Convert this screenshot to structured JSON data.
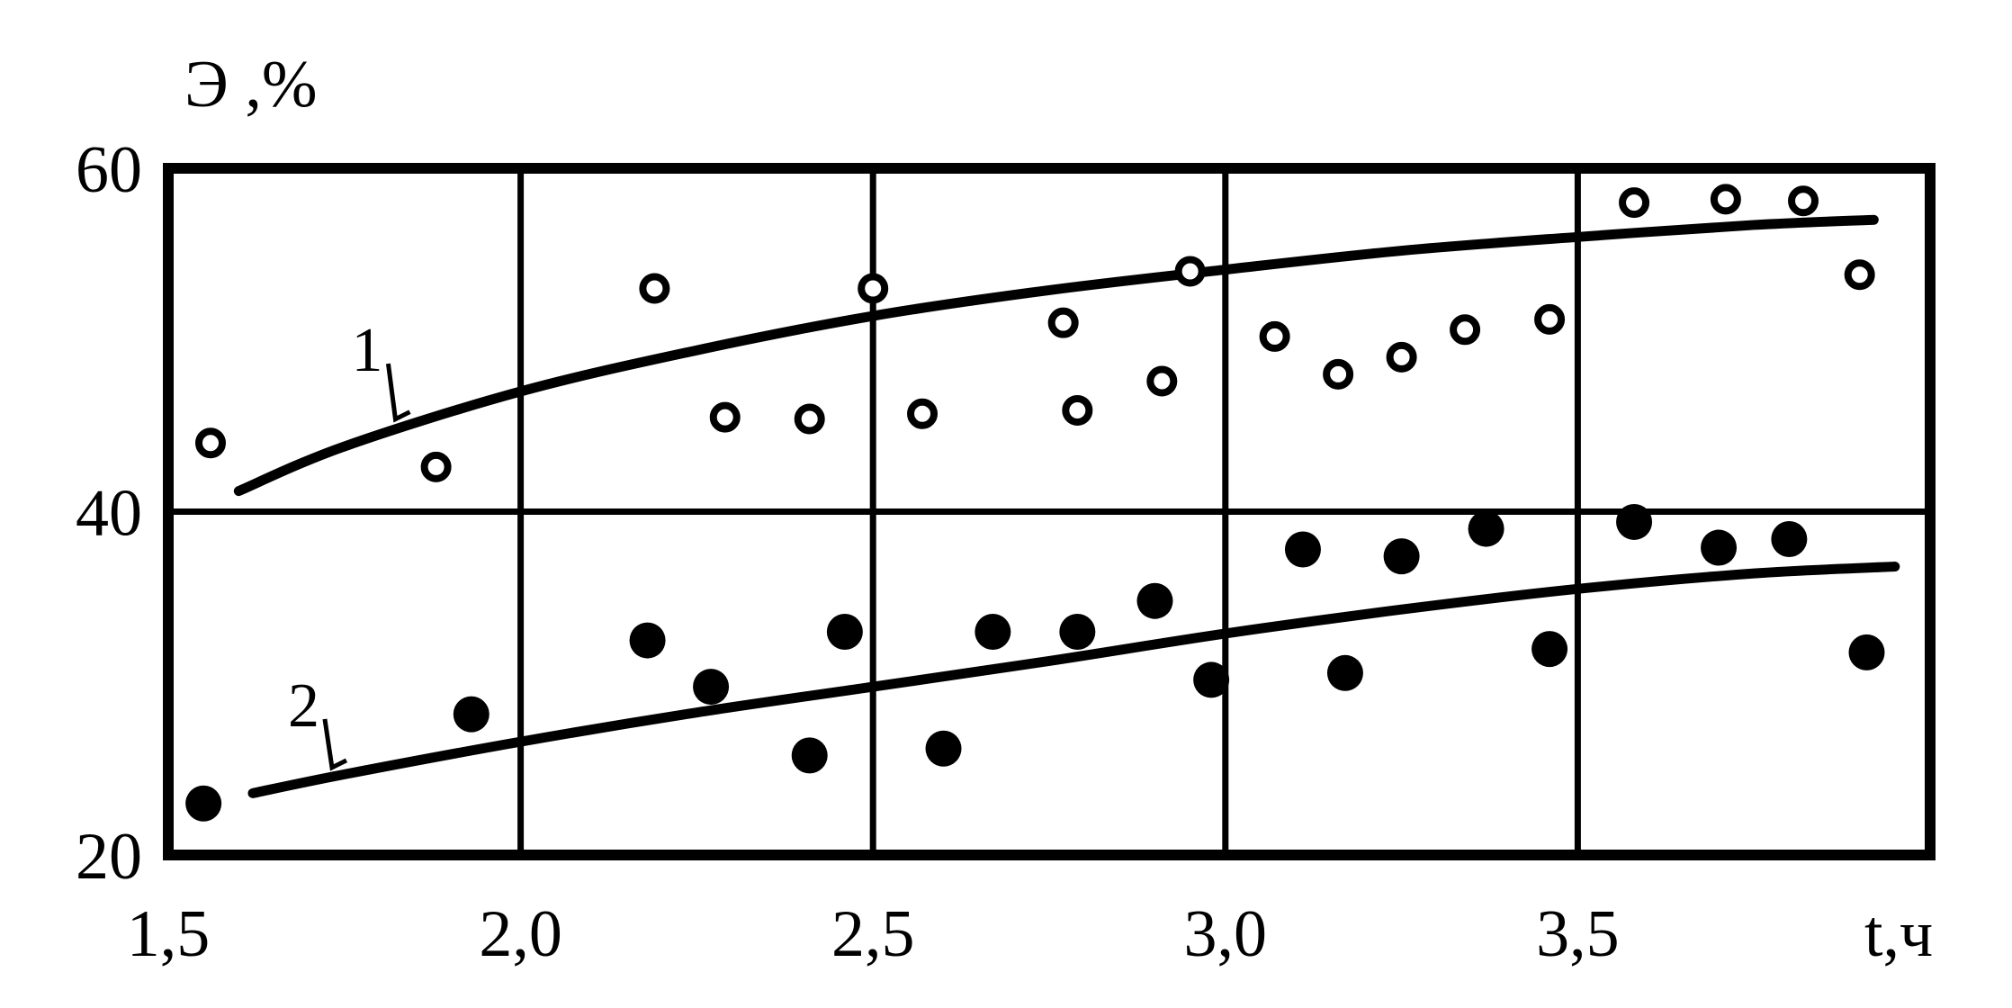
{
  "chart_data": {
    "type": "scatter",
    "title": "",
    "xlabel": "t,ч",
    "ylabel": "Э ,%",
    "xlim": [
      1.5,
      4.0
    ],
    "ylim": [
      20,
      60
    ],
    "x_ticks": [
      1.5,
      2.0,
      2.5,
      3.0,
      3.5
    ],
    "x_tick_labels": [
      "1,5",
      "2,0",
      "2,5",
      "3,0",
      "3,5"
    ],
    "y_ticks": [
      20,
      40,
      60
    ],
    "y_tick_labels": [
      "20",
      "40",
      "60"
    ],
    "grid": true,
    "series": [
      {
        "name": "1",
        "marker": "open-circle",
        "points": [
          [
            1.56,
            44.0
          ],
          [
            1.88,
            42.6
          ],
          [
            2.19,
            53.0
          ],
          [
            2.29,
            45.5
          ],
          [
            2.41,
            45.4
          ],
          [
            2.5,
            53.0
          ],
          [
            2.57,
            45.7
          ],
          [
            2.77,
            51.0
          ],
          [
            2.79,
            45.9
          ],
          [
            2.91,
            47.6
          ],
          [
            2.95,
            54.0
          ],
          [
            3.07,
            50.2
          ],
          [
            3.16,
            48.0
          ],
          [
            3.25,
            49.0
          ],
          [
            3.34,
            50.6
          ],
          [
            3.46,
            51.2
          ],
          [
            3.58,
            58.0
          ],
          [
            3.71,
            58.2
          ],
          [
            3.82,
            58.1
          ],
          [
            3.9,
            53.8
          ]
        ],
        "trend": [
          [
            1.6,
            41.2
          ],
          [
            1.75,
            43.8
          ],
          [
            2.0,
            47.0
          ],
          [
            2.25,
            49.4
          ],
          [
            2.5,
            51.4
          ],
          [
            2.75,
            52.9
          ],
          [
            3.0,
            54.1
          ],
          [
            3.25,
            55.2
          ],
          [
            3.5,
            56.0
          ],
          [
            3.75,
            56.7
          ],
          [
            3.92,
            57.0
          ]
        ]
      },
      {
        "name": "2",
        "marker": "filled-circle",
        "points": [
          [
            1.55,
            23.0
          ],
          [
            1.93,
            28.2
          ],
          [
            2.18,
            32.5
          ],
          [
            2.27,
            29.8
          ],
          [
            2.41,
            25.8
          ],
          [
            2.46,
            33.0
          ],
          [
            2.6,
            26.2
          ],
          [
            2.67,
            33.0
          ],
          [
            2.79,
            33.0
          ],
          [
            2.9,
            34.8
          ],
          [
            2.98,
            30.2
          ],
          [
            3.11,
            37.8
          ],
          [
            3.17,
            30.6
          ],
          [
            3.25,
            37.4
          ],
          [
            3.37,
            39.0
          ],
          [
            3.46,
            32.0
          ],
          [
            3.58,
            39.4
          ],
          [
            3.7,
            37.9
          ],
          [
            3.8,
            38.4
          ],
          [
            3.91,
            31.8
          ]
        ],
        "trend": [
          [
            1.62,
            23.6
          ],
          [
            1.75,
            24.7
          ],
          [
            2.0,
            26.6
          ],
          [
            2.25,
            28.3
          ],
          [
            2.5,
            29.8
          ],
          [
            2.75,
            31.3
          ],
          [
            3.0,
            32.9
          ],
          [
            3.25,
            34.3
          ],
          [
            3.5,
            35.5
          ],
          [
            3.75,
            36.4
          ],
          [
            3.95,
            36.8
          ]
        ]
      }
    ],
    "annotations": [
      {
        "text": "1",
        "series": 0
      },
      {
        "text": "2",
        "series": 1
      }
    ]
  }
}
